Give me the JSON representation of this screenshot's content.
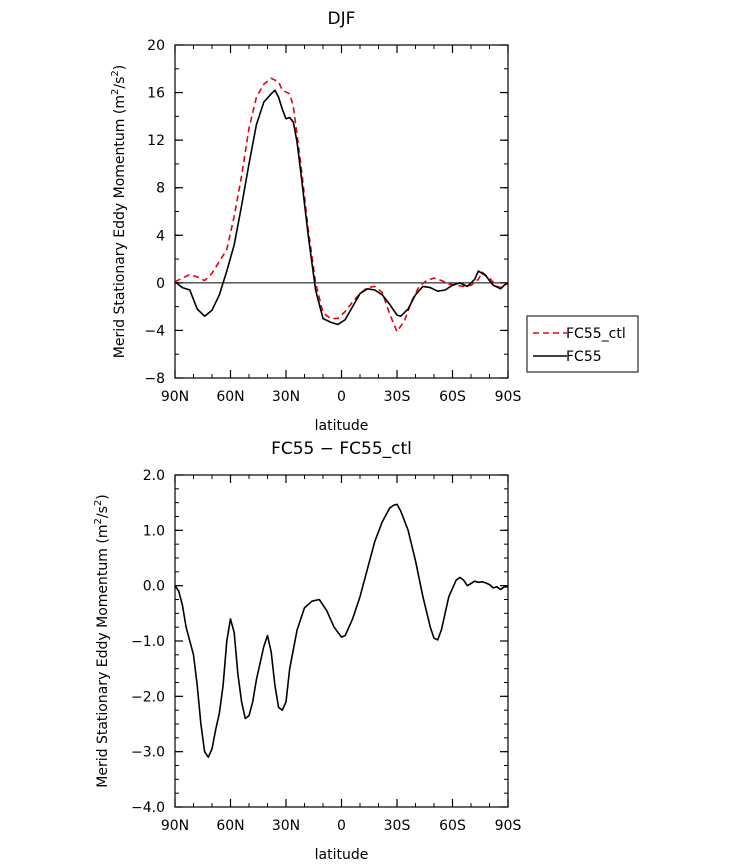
{
  "legend": {
    "entries": [
      "FC55_ctl",
      "FC55"
    ]
  },
  "chart_data": [
    {
      "type": "line",
      "title": "DJF",
      "xlabel": "latitude",
      "ylabel": "Merid Stationary Eddy Momentum (m²/s²)",
      "ylabel_main": "Merid Stationary Eddy Momentum (m",
      "ylabel_sup1": "2",
      "ylabel_mid": "/s",
      "ylabel_sup2": "2",
      "ylabel_end": ")",
      "xlim": [
        90,
        -90
      ],
      "ylim": [
        -8,
        20
      ],
      "xticks": [
        90,
        60,
        30,
        0,
        -30,
        -60,
        -90
      ],
      "xtick_labels": [
        "90N",
        "60N",
        "30N",
        "0",
        "30S",
        "60S",
        "90S"
      ],
      "yticks": [
        -8,
        -4,
        0,
        4,
        8,
        12,
        16,
        20
      ],
      "ytick_labels": [
        "−8",
        "−4",
        "0",
        "4",
        "8",
        "12",
        "16",
        "20"
      ],
      "legend_position": "right",
      "series": [
        {
          "name": "FC55_ctl",
          "color": "#e8000b",
          "dash": "dashed",
          "points": [
            [
              90,
              0.1
            ],
            [
              86,
              0.4
            ],
            [
              82,
              0.7
            ],
            [
              78,
              0.5
            ],
            [
              74,
              0.2
            ],
            [
              70,
              0.8
            ],
            [
              66,
              1.8
            ],
            [
              62,
              2.8
            ],
            [
              58,
              5.6
            ],
            [
              54,
              9.0
            ],
            [
              50,
              13.0
            ],
            [
              46,
              15.6
            ],
            [
              42,
              16.7
            ],
            [
              38,
              17.2
            ],
            [
              34,
              16.9
            ],
            [
              32,
              16.2
            ],
            [
              28,
              15.9
            ],
            [
              26,
              14.8
            ],
            [
              22,
              10.0
            ],
            [
              18,
              4.5
            ],
            [
              14,
              0.0
            ],
            [
              10,
              -2.5
            ],
            [
              6,
              -3.0
            ],
            [
              2,
              -3.0
            ],
            [
              -2,
              -2.4
            ],
            [
              -6,
              -1.6
            ],
            [
              -10,
              -0.9
            ],
            [
              -14,
              -0.4
            ],
            [
              -18,
              -0.3
            ],
            [
              -22,
              -0.8
            ],
            [
              -26,
              -2.6
            ],
            [
              -30,
              -4.1
            ],
            [
              -34,
              -3.2
            ],
            [
              -38,
              -1.5
            ],
            [
              -42,
              -0.3
            ],
            [
              -46,
              0.2
            ],
            [
              -50,
              0.4
            ],
            [
              -54,
              0.2
            ],
            [
              -58,
              -0.1
            ],
            [
              -62,
              -0.2
            ],
            [
              -66,
              -0.3
            ],
            [
              -70,
              -0.2
            ],
            [
              -74,
              0.3
            ],
            [
              -76,
              0.9
            ],
            [
              -80,
              0.4
            ],
            [
              -84,
              -0.3
            ],
            [
              -86,
              -0.4
            ],
            [
              -88,
              -0.1
            ],
            [
              -90,
              0.0
            ]
          ]
        },
        {
          "name": "FC55",
          "color": "#000000",
          "dash": "solid",
          "points": [
            [
              90,
              0.1
            ],
            [
              86,
              -0.4
            ],
            [
              82,
              -0.6
            ],
            [
              78,
              -2.2
            ],
            [
              74,
              -2.8
            ],
            [
              70,
              -2.3
            ],
            [
              66,
              -1.0
            ],
            [
              62,
              1.0
            ],
            [
              58,
              3.2
            ],
            [
              54,
              6.5
            ],
            [
              50,
              10.0
            ],
            [
              46,
              13.3
            ],
            [
              42,
              15.2
            ],
            [
              38,
              15.9
            ],
            [
              36,
              16.2
            ],
            [
              34,
              15.6
            ],
            [
              32,
              14.6
            ],
            [
              30,
              13.8
            ],
            [
              28,
              13.9
            ],
            [
              26,
              13.5
            ],
            [
              24,
              11.8
            ],
            [
              22,
              9.3
            ],
            [
              18,
              4.0
            ],
            [
              14,
              -0.6
            ],
            [
              10,
              -3.0
            ],
            [
              6,
              -3.3
            ],
            [
              2,
              -3.5
            ],
            [
              -2,
              -3.1
            ],
            [
              -6,
              -2.0
            ],
            [
              -10,
              -0.9
            ],
            [
              -14,
              -0.5
            ],
            [
              -18,
              -0.6
            ],
            [
              -22,
              -1.0
            ],
            [
              -26,
              -1.8
            ],
            [
              -30,
              -2.7
            ],
            [
              -32,
              -2.8
            ],
            [
              -36,
              -2.2
            ],
            [
              -40,
              -1.0
            ],
            [
              -44,
              -0.3
            ],
            [
              -48,
              -0.4
            ],
            [
              -52,
              -0.7
            ],
            [
              -56,
              -0.6
            ],
            [
              -60,
              -0.2
            ],
            [
              -64,
              0.0
            ],
            [
              -68,
              -0.3
            ],
            [
              -72,
              0.3
            ],
            [
              -74,
              1.0
            ],
            [
              -78,
              0.6
            ],
            [
              -82,
              -0.2
            ],
            [
              -86,
              -0.5
            ],
            [
              -88,
              -0.2
            ],
            [
              -90,
              0.0
            ]
          ]
        }
      ]
    },
    {
      "type": "line",
      "title": "FC55 − FC55_ctl",
      "xlabel": "latitude",
      "ylabel": "Merid Stationary Eddy Momentum (m²/s²)",
      "ylabel_main": "Merid Stationary Eddy Momentum (m",
      "ylabel_sup1": "2",
      "ylabel_mid": "/s",
      "ylabel_sup2": "2",
      "ylabel_end": ")",
      "xlim": [
        90,
        -90
      ],
      "ylim": [
        -4,
        2
      ],
      "xticks": [
        90,
        60,
        30,
        0,
        -30,
        -60,
        -90
      ],
      "xtick_labels": [
        "90N",
        "60N",
        "30N",
        "0",
        "30S",
        "60S",
        "90S"
      ],
      "yticks": [
        -4,
        -3,
        -2,
        -1,
        0,
        1,
        2
      ],
      "ytick_labels": [
        "−4.0",
        "−3.0",
        "−2.0",
        "−1.0",
        "0.0",
        "1.0",
        "2.0"
      ],
      "series": [
        {
          "name": "",
          "color": "#000000",
          "dash": "solid",
          "points": [
            [
              90,
              0.0
            ],
            [
              88,
              -0.1
            ],
            [
              86,
              -0.35
            ],
            [
              84,
              -0.75
            ],
            [
              82,
              -1.0
            ],
            [
              80,
              -1.25
            ],
            [
              78,
              -1.8
            ],
            [
              76,
              -2.5
            ],
            [
              74,
              -3.0
            ],
            [
              72,
              -3.1
            ],
            [
              70,
              -2.95
            ],
            [
              68,
              -2.6
            ],
            [
              66,
              -2.3
            ],
            [
              64,
              -1.8
            ],
            [
              62,
              -1.0
            ],
            [
              60,
              -0.6
            ],
            [
              58,
              -0.85
            ],
            [
              56,
              -1.6
            ],
            [
              54,
              -2.1
            ],
            [
              52,
              -2.4
            ],
            [
              50,
              -2.35
            ],
            [
              48,
              -2.1
            ],
            [
              46,
              -1.7
            ],
            [
              42,
              -1.1
            ],
            [
              40,
              -0.9
            ],
            [
              38,
              -1.2
            ],
            [
              36,
              -1.8
            ],
            [
              34,
              -2.2
            ],
            [
              32,
              -2.25
            ],
            [
              30,
              -2.1
            ],
            [
              28,
              -1.5
            ],
            [
              24,
              -0.8
            ],
            [
              20,
              -0.4
            ],
            [
              16,
              -0.28
            ],
            [
              12,
              -0.25
            ],
            [
              8,
              -0.45
            ],
            [
              4,
              -0.75
            ],
            [
              0,
              -0.93
            ],
            [
              -2,
              -0.9
            ],
            [
              -6,
              -0.6
            ],
            [
              -10,
              -0.2
            ],
            [
              -14,
              0.3
            ],
            [
              -18,
              0.8
            ],
            [
              -22,
              1.15
            ],
            [
              -26,
              1.4
            ],
            [
              -28,
              1.45
            ],
            [
              -30,
              1.47
            ],
            [
              -32,
              1.35
            ],
            [
              -36,
              1.0
            ],
            [
              -40,
              0.45
            ],
            [
              -44,
              -0.2
            ],
            [
              -48,
              -0.75
            ],
            [
              -50,
              -0.95
            ],
            [
              -52,
              -0.98
            ],
            [
              -54,
              -0.8
            ],
            [
              -58,
              -0.2
            ],
            [
              -62,
              0.1
            ],
            [
              -64,
              0.15
            ],
            [
              -66,
              0.1
            ],
            [
              -68,
              0.0
            ],
            [
              -70,
              0.04
            ],
            [
              -72,
              0.08
            ],
            [
              -74,
              0.06
            ],
            [
              -76,
              0.07
            ],
            [
              -78,
              0.05
            ],
            [
              -80,
              0.02
            ],
            [
              -82,
              -0.04
            ],
            [
              -84,
              -0.02
            ],
            [
              -86,
              -0.07
            ],
            [
              -88,
              -0.02
            ],
            [
              -90,
              -0.02
            ]
          ]
        }
      ]
    }
  ]
}
